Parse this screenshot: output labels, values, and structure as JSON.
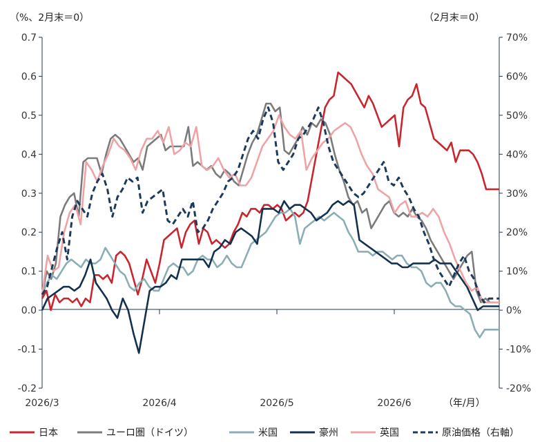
{
  "chart_data": {
    "type": "line",
    "left_unit_label": "（%、2月末＝0）",
    "right_unit_label": "（2月末＝0）",
    "x_unit_label": "（年/月）",
    "x_tick_labels": [
      "2026/3",
      "2026/4",
      "2026/5",
      "2026/6"
    ],
    "y_left": {
      "min": -0.2,
      "max": 0.7,
      "step": 0.1,
      "tick_labels": [
        "-0.2",
        "-0.1",
        "0.0",
        "0.1",
        "0.2",
        "0.3",
        "0.4",
        "0.5",
        "0.6",
        "0.7"
      ]
    },
    "y_right": {
      "min": -20,
      "max": 70,
      "step": 10,
      "tick_labels": [
        "-20%",
        "-10%",
        "0%",
        "10%",
        "20%",
        "30%",
        "40%",
        "50%",
        "60%",
        "70%"
      ]
    },
    "grid": false,
    "legend_position": "bottom",
    "series": [
      {
        "name": "日本",
        "color": "#c8262e",
        "dash": false,
        "axis": "left",
        "values": [
          0.03,
          0.05,
          0.0,
          0.04,
          0.02,
          0.03,
          0.03,
          0.02,
          0.03,
          0.01,
          0.03,
          0.02,
          0.09,
          0.09,
          0.08,
          0.09,
          0.07,
          0.14,
          0.15,
          0.14,
          0.12,
          0.08,
          0.04,
          0.08,
          0.13,
          0.1,
          0.07,
          0.12,
          0.18,
          0.19,
          0.2,
          0.21,
          0.16,
          0.2,
          0.22,
          0.23,
          0.17,
          0.21,
          0.2,
          0.17,
          0.18,
          0.17,
          0.16,
          0.17,
          0.2,
          0.22,
          0.25,
          0.24,
          0.26,
          0.26,
          0.25,
          0.27,
          0.27,
          0.26,
          0.27,
          0.26,
          0.23,
          0.24,
          0.25,
          0.24,
          0.25,
          0.28,
          0.34,
          0.4,
          0.46,
          0.52,
          0.54,
          0.55,
          0.61,
          0.6,
          0.59,
          0.58,
          0.56,
          0.54,
          0.52,
          0.55,
          0.53,
          0.5,
          0.47,
          0.48,
          0.49,
          0.5,
          0.42,
          0.52,
          0.54,
          0.55,
          0.58,
          0.53,
          0.52,
          0.48,
          0.44,
          0.43,
          0.42,
          0.41,
          0.43,
          0.38,
          0.41,
          0.41,
          0.41,
          0.4,
          0.38,
          0.35,
          0.31,
          0.31,
          0.31,
          0.31
        ]
      },
      {
        "name": "ユーロ圏（ドイツ）",
        "color": "#7b7b7b",
        "dash": false,
        "axis": "left",
        "values": [
          0.04,
          0.1,
          0.08,
          0.12,
          0.24,
          0.27,
          0.29,
          0.3,
          0.24,
          0.38,
          0.39,
          0.39,
          0.39,
          0.35,
          0.4,
          0.44,
          0.45,
          0.44,
          0.42,
          0.4,
          0.38,
          0.39,
          0.36,
          0.42,
          0.43,
          0.44,
          0.45,
          0.41,
          0.42,
          0.42,
          0.42,
          0.42,
          0.47,
          0.37,
          0.38,
          0.37,
          0.36,
          0.37,
          0.35,
          0.34,
          0.36,
          0.35,
          0.33,
          0.32,
          0.36,
          0.4,
          0.43,
          0.45,
          0.49,
          0.53,
          0.53,
          0.51,
          0.52,
          0.41,
          0.4,
          0.42,
          0.44,
          0.47,
          0.45,
          0.48,
          0.47,
          0.49,
          0.48,
          0.45,
          0.4,
          0.36,
          0.33,
          0.29,
          0.27,
          0.28,
          0.25,
          0.26,
          0.21,
          0.23,
          0.25,
          0.27,
          0.28,
          0.25,
          0.24,
          0.25,
          0.24,
          0.26,
          0.24,
          0.23,
          0.21,
          0.18,
          0.16,
          0.14,
          0.12,
          0.1,
          0.08,
          0.1,
          0.12,
          0.14,
          0.15,
          0.05,
          0.02,
          0.03,
          0.02,
          0.02,
          0.02
        ]
      },
      {
        "name": "米国",
        "color": "#8aaeb4",
        "dash": false,
        "axis": "left",
        "values": [
          0.04,
          0.07,
          0.09,
          0.08,
          0.1,
          0.12,
          0.13,
          0.12,
          0.11,
          0.13,
          0.12,
          0.12,
          0.13,
          0.16,
          0.14,
          0.12,
          0.1,
          0.09,
          0.06,
          0.05,
          0.07,
          0.08,
          0.06,
          0.05,
          0.05,
          0.08,
          0.11,
          0.12,
          0.11,
          0.11,
          0.09,
          0.1,
          0.13,
          0.14,
          0.13,
          0.13,
          0.11,
          0.12,
          0.14,
          0.12,
          0.11,
          0.11,
          0.14,
          0.17,
          0.18,
          0.19,
          0.2,
          0.22,
          0.24,
          0.25,
          0.25,
          0.26,
          0.24,
          0.17,
          0.21,
          0.22,
          0.23,
          0.24,
          0.23,
          0.24,
          0.25,
          0.24,
          0.23,
          0.2,
          0.18,
          0.15,
          0.15,
          0.15,
          0.14,
          0.15,
          0.15,
          0.14,
          0.13,
          0.14,
          0.14,
          0.12,
          0.11,
          0.11,
          0.1,
          0.07,
          0.06,
          0.07,
          0.07,
          0.05,
          0.02,
          0.01,
          0.01,
          0.0,
          -0.01,
          -0.05,
          -0.07,
          -0.05,
          -0.05,
          -0.05,
          -0.05
        ]
      },
      {
        "name": "豪州",
        "color": "#14304f",
        "dash": false,
        "axis": "left",
        "values": [
          0.0,
          0.03,
          0.04,
          0.05,
          0.06,
          0.06,
          0.05,
          0.06,
          0.09,
          0.13,
          0.07,
          0.05,
          0.03,
          0.0,
          -0.02,
          0.03,
          0.0,
          -0.06,
          -0.11,
          -0.03,
          0.05,
          0.06,
          0.06,
          0.07,
          0.09,
          0.08,
          0.13,
          0.13,
          0.13,
          0.13,
          0.13,
          0.11,
          0.15,
          0.16,
          0.18,
          0.17,
          0.2,
          0.21,
          0.2,
          0.19,
          0.17,
          0.26,
          0.26,
          0.26,
          0.25,
          0.28,
          0.26,
          0.27,
          0.27,
          0.26,
          0.25,
          0.23,
          0.24,
          0.25,
          0.27,
          0.28,
          0.27,
          0.28,
          0.27,
          0.18,
          0.17,
          0.16,
          0.15,
          0.14,
          0.13,
          0.12,
          0.12,
          0.11,
          0.11,
          0.12,
          0.12,
          0.12,
          0.12,
          0.13,
          0.12,
          0.12,
          0.12,
          0.1,
          0.08,
          0.06,
          0.03,
          0.0,
          0.01,
          0.01,
          0.01,
          0.01
        ]
      },
      {
        "name": "英国",
        "color": "#eea3a5",
        "dash": false,
        "axis": "left",
        "values": [
          0.04,
          0.14,
          0.1,
          0.11,
          0.2,
          0.25,
          0.27,
          0.22,
          0.38,
          0.36,
          0.33,
          0.37,
          0.4,
          0.44,
          0.42,
          0.41,
          0.39,
          0.36,
          0.41,
          0.44,
          0.44,
          0.46,
          0.43,
          0.47,
          0.4,
          0.41,
          0.43,
          0.42,
          0.47,
          0.37,
          0.36,
          0.37,
          0.39,
          0.36,
          0.34,
          0.35,
          0.32,
          0.32,
          0.34,
          0.38,
          0.42,
          0.44,
          0.46,
          0.5,
          0.47,
          0.45,
          0.44,
          0.46,
          0.36,
          0.39,
          0.41,
          0.43,
          0.44,
          0.46,
          0.47,
          0.48,
          0.47,
          0.44,
          0.4,
          0.37,
          0.35,
          0.31,
          0.3,
          0.29,
          0.25,
          0.27,
          0.28,
          0.24,
          0.24,
          0.25,
          0.24,
          0.26,
          0.24,
          0.2,
          0.17,
          0.13,
          0.1,
          0.07,
          0.05,
          0.06,
          0.02,
          0.02,
          0.02,
          0.02
        ]
      },
      {
        "name": "原油価格（右軸）",
        "color": "#1b3a5c",
        "dash": true,
        "axis": "right",
        "values": [
          4,
          6,
          11,
          16,
          20,
          13,
          24,
          28,
          26,
          24,
          30,
          33,
          35,
          31,
          24,
          29,
          31,
          34,
          33,
          34,
          25,
          28,
          29,
          30,
          31,
          23,
          22,
          24,
          26,
          24,
          28,
          20,
          21,
          23,
          26,
          28,
          30,
          33,
          34,
          36,
          40,
          44,
          46,
          44,
          49,
          52,
          48,
          38,
          36,
          38,
          40,
          44,
          45,
          47,
          49,
          52,
          48,
          42,
          38,
          36,
          34,
          32,
          30,
          29,
          30,
          32,
          34,
          36,
          38,
          33,
          32,
          34,
          31,
          29,
          26,
          24,
          20,
          17,
          13,
          10,
          8,
          6,
          9,
          12,
          14,
          10,
          8,
          4,
          2,
          3,
          3,
          3
        ]
      }
    ]
  }
}
